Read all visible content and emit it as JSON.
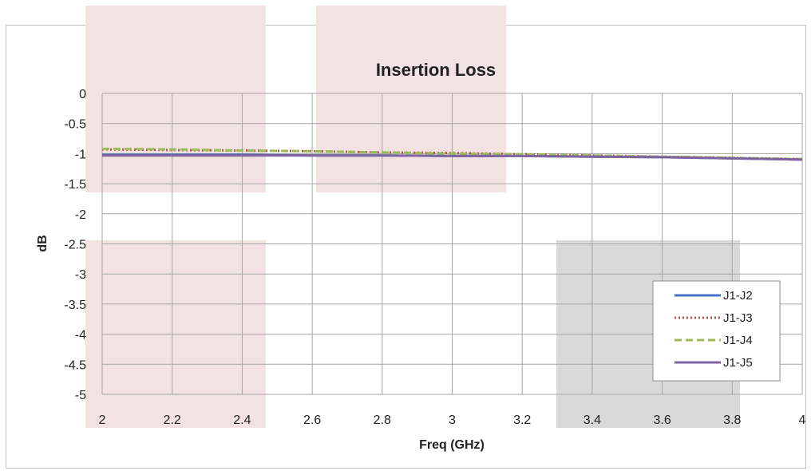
{
  "chart_data": {
    "type": "line",
    "title": "Insertion Loss",
    "xlabel": "Freq (GHz)",
    "ylabel": "dB",
    "xlim": [
      2,
      4
    ],
    "ylim": [
      -5,
      0
    ],
    "xticks": [
      2,
      2.2,
      2.4,
      2.6,
      2.8,
      3,
      3.2,
      3.4,
      3.6,
      3.8,
      4
    ],
    "yticks": [
      0,
      -0.5,
      -1,
      -1.5,
      -2,
      -2.5,
      -3,
      -3.5,
      -4,
      -4.5,
      -5
    ],
    "grid": true,
    "legend_position": "bottom-right",
    "series": [
      {
        "name": "J1-J2",
        "color": "#4472c4",
        "dash": "solid",
        "x": [
          2,
          2.2,
          2.4,
          2.6,
          2.8,
          3,
          3.2,
          3.4,
          3.6,
          3.8,
          4
        ],
        "values": [
          -1.02,
          -1.02,
          -1.02,
          -1.03,
          -1.03,
          -1.04,
          -1.04,
          -1.05,
          -1.06,
          -1.08,
          -1.1
        ]
      },
      {
        "name": "J1-J3",
        "color": "#c0504d",
        "dash": "dotted",
        "x": [
          2,
          2.2,
          2.4,
          2.6,
          2.8,
          3,
          3.2,
          3.4,
          3.6,
          3.8,
          4
        ],
        "values": [
          -0.93,
          -0.94,
          -0.95,
          -0.96,
          -0.98,
          -0.99,
          -1.01,
          -1.03,
          -1.05,
          -1.07,
          -1.09
        ]
      },
      {
        "name": "J1-J4",
        "color": "#9bbb59",
        "dash": "dashed",
        "x": [
          2,
          2.2,
          2.4,
          2.6,
          2.8,
          3,
          3.2,
          3.4,
          3.6,
          3.8,
          4
        ],
        "values": [
          -0.92,
          -0.93,
          -0.95,
          -0.96,
          -0.98,
          -1.0,
          -1.01,
          -1.03,
          -1.05,
          -1.07,
          -1.09
        ]
      },
      {
        "name": "J1-J5",
        "color": "#8064a2",
        "dash": "solid",
        "x": [
          2,
          2.2,
          2.4,
          2.6,
          2.8,
          3,
          3.2,
          3.4,
          3.6,
          3.8,
          4
        ],
        "values": [
          -1.03,
          -1.03,
          -1.03,
          -1.03,
          -1.03,
          -1.04,
          -1.04,
          -1.05,
          -1.06,
          -1.08,
          -1.1
        ]
      }
    ]
  }
}
